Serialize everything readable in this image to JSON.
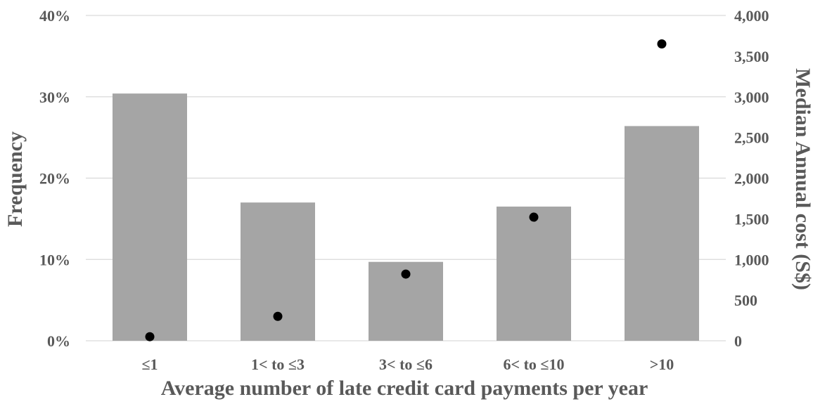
{
  "chart_data": {
    "type": "bar",
    "categories": [
      "≤1",
      "1< to ≤3",
      "3< to ≤6",
      "6< to ≤10",
      ">10"
    ],
    "series": [
      {
        "kind": "bar",
        "axis": "left",
        "values": [
          30.4,
          17.0,
          9.7,
          16.5,
          26.4
        ]
      },
      {
        "kind": "scatter",
        "axis": "right",
        "values": [
          50,
          300,
          820,
          1520,
          3650
        ]
      }
    ],
    "xlabel": "Average number of late credit card payments per year",
    "ylabel": "Frequency",
    "y2label": "Median Annual cost (S$)",
    "ylim": [
      0,
      40
    ],
    "y2lim": [
      0,
      4000
    ],
    "yticks": [
      "0%",
      "10%",
      "20%",
      "30%",
      "40%"
    ],
    "y2ticks": [
      "0",
      "500",
      "1,000",
      "1,500",
      "2,000",
      "2,500",
      "3,000",
      "3,500",
      "4,000"
    ],
    "grid": true,
    "legend": "none",
    "colors": {
      "bar": "#a5a5a5",
      "point": "#000000",
      "grid": "#d9d9d9",
      "text": "#595959"
    }
  }
}
